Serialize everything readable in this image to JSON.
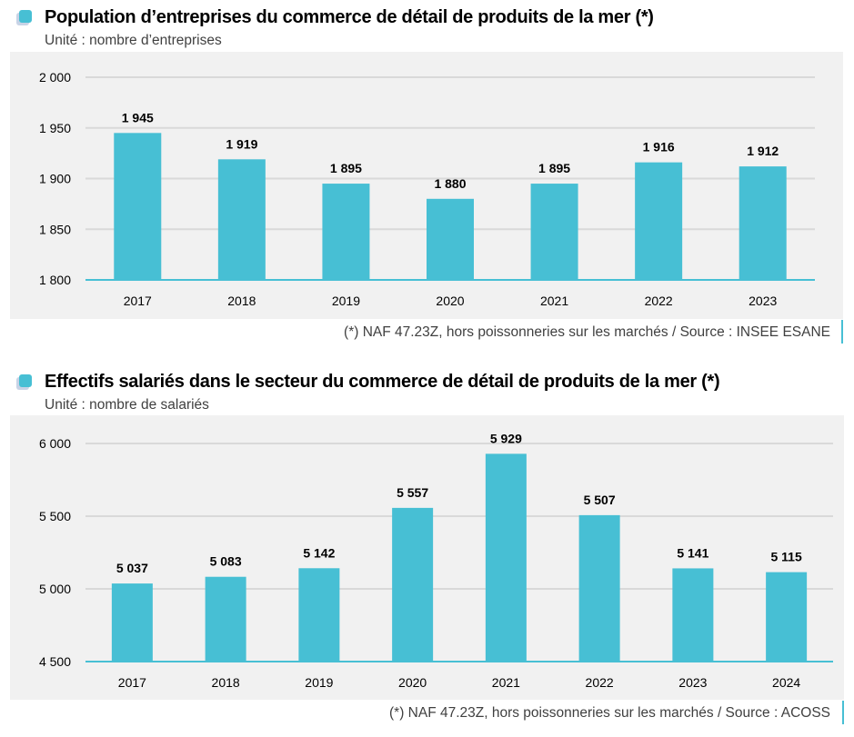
{
  "chart_data": [
    {
      "type": "bar",
      "title": "Population d’entreprises du commerce de détail de produits de la mer (*)",
      "subtitle": "Unité : nombre d’entreprises",
      "xlabel": "",
      "ylabel": "",
      "categories": [
        "2017",
        "2018",
        "2019",
        "2020",
        "2021",
        "2022",
        "2023"
      ],
      "values": [
        1945,
        1919,
        1895,
        1880,
        1895,
        1916,
        1912
      ],
      "value_labels": [
        "1 945",
        "1 919",
        "1 895",
        "1 880",
        "1 895",
        "1 916",
        "1 912"
      ],
      "ylim": [
        1800,
        2000
      ],
      "yticks": [
        1800,
        1850,
        1900,
        1950,
        2000
      ],
      "ytick_labels": [
        "1 800",
        "1 850",
        "1 900",
        "1 950",
        "2 000"
      ],
      "grid": true,
      "bar_color": "#47bfd4",
      "footnote": "(*) NAF 47.23Z, hors poissonneries sur les marchés / Source : INSEE ESANE"
    },
    {
      "type": "bar",
      "title": "Effectifs salariés dans le secteur du commerce de détail de produits de la mer (*)",
      "subtitle": "Unité : nombre de salariés",
      "xlabel": "",
      "ylabel": "",
      "categories": [
        "2017",
        "2018",
        "2019",
        "2020",
        "2021",
        "2022",
        "2023",
        "2024"
      ],
      "values": [
        5037,
        5083,
        5142,
        5557,
        5929,
        5507,
        5141,
        5115
      ],
      "value_labels": [
        "5 037",
        "5 083",
        "5 142",
        "5 557",
        "5 929",
        "5 507",
        "5 141",
        "5 115"
      ],
      "ylim": [
        4500,
        6000
      ],
      "yticks": [
        4500,
        5000,
        5500,
        6000
      ],
      "ytick_labels": [
        "4 500",
        "5 000",
        "5 500",
        "6 000"
      ],
      "grid": true,
      "bar_color": "#47bfd4",
      "footnote": "(*) NAF 47.23Z, hors poissonneries sur les marchés / Source : ACOSS"
    }
  ]
}
